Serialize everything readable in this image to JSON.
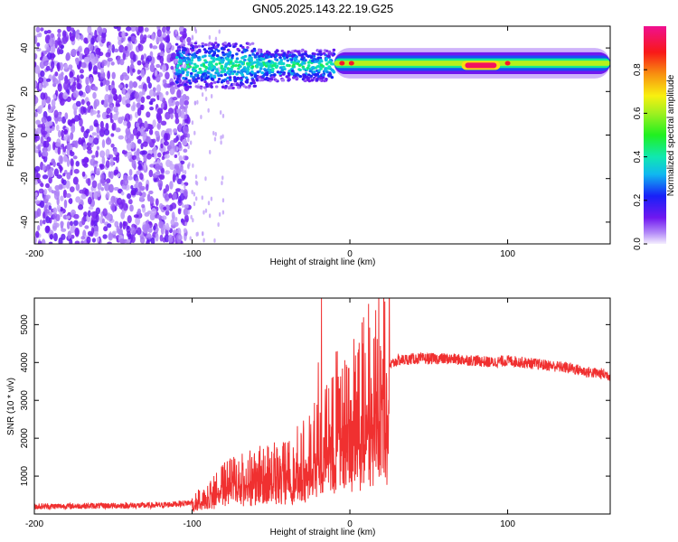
{
  "title": "GN05.2025.143.22.19.G25",
  "colors": {
    "snr_line": "#f03030",
    "scatter_point": "#6a14f0",
    "axis": "#000000"
  },
  "chart_data": [
    {
      "type": "heatmap",
      "name": "spectrogram",
      "xlabel": "Height of straight line (km)",
      "ylabel": "Frequency (Hz)",
      "xlim": [
        -200,
        165
      ],
      "ylim": [
        -50,
        50
      ],
      "x_ticks": [
        -200,
        -100,
        0,
        100
      ],
      "y_ticks": [
        40,
        20,
        0,
        -20,
        -40
      ],
      "colorbar": {
        "label": "Normalized spectral amplitude",
        "range": [
          0,
          1
        ],
        "ticks": [
          0.0,
          0.2,
          0.4,
          0.6,
          0.8
        ],
        "colormap": "rainbow (purple -> blue -> cyan -> green -> yellow -> red -> magenta)"
      },
      "features": [
        {
          "description": "diffuse low-amplitude noise across all frequencies",
          "x_range": [
            -200,
            -110
          ],
          "amplitude": 0.05
        },
        {
          "description": "tone band centred near 33 Hz, broad",
          "x_range": [
            -110,
            -10
          ],
          "freq_center": 32,
          "freq_width": 8,
          "amplitude": 0.35
        },
        {
          "description": "narrow tone band near 33 Hz",
          "x_range": [
            -10,
            165
          ],
          "freq_center": 33,
          "freq_width": 3,
          "amplitude": 0.6
        },
        {
          "description": "peak amplitude segment",
          "x_range": [
            73,
            93
          ],
          "freq_center": 32,
          "amplitude": 0.95
        }
      ]
    },
    {
      "type": "line",
      "name": "snr",
      "xlabel": "Height of straight line (km)",
      "ylabel": "SNR (10 * v/v)",
      "xlim": [
        -200,
        165
      ],
      "ylim": [
        0,
        5700
      ],
      "x_ticks": [
        -200,
        -100,
        0,
        100
      ],
      "y_ticks": [
        1000,
        2000,
        3000,
        4000,
        5000
      ],
      "envelope": {
        "x": [
          -200,
          -150,
          -120,
          -100,
          -90,
          -80,
          -70,
          -60,
          -50,
          -40,
          -30,
          -20,
          -15,
          -10,
          -5,
          0,
          5,
          10,
          15,
          20,
          25,
          30,
          40,
          60,
          80,
          90,
          100,
          110,
          120,
          130,
          140,
          150,
          160,
          165
        ],
        "y": [
          200,
          220,
          230,
          300,
          500,
          800,
          900,
          1000,
          1100,
          1200,
          1400,
          1800,
          2200,
          2600,
          2300,
          2700,
          2900,
          3100,
          3400,
          3600,
          3900,
          4050,
          4100,
          4100,
          4050,
          4000,
          4050,
          4000,
          3950,
          3900,
          3850,
          3750,
          3700,
          3650
        ]
      },
      "spikes": [
        {
          "x": -18,
          "y": 5700
        },
        {
          "x": -20,
          "y": 4000
        },
        {
          "x": 8,
          "y": 4500
        },
        {
          "x": 12,
          "y": 900
        },
        {
          "x": -8,
          "y": 4300
        }
      ]
    }
  ]
}
